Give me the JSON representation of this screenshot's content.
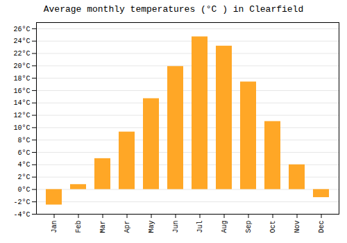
{
  "chart_data": {
    "type": "bar",
    "title": "Average monthly temperatures (°C ) in Clearfield",
    "categories": [
      "Jan",
      "Feb",
      "Mar",
      "Apr",
      "May",
      "Jun",
      "Jul",
      "Aug",
      "Sep",
      "Oct",
      "Nov",
      "Dec"
    ],
    "values": [
      -2.5,
      0.8,
      5.0,
      9.3,
      14.7,
      19.9,
      24.7,
      23.2,
      17.4,
      11.0,
      4.0,
      -1.3
    ],
    "color": "#FFA726",
    "ylim": [
      -4,
      27
    ],
    "yticks": [
      {
        "value": -4,
        "label": "-4°C"
      },
      {
        "value": -2,
        "label": "-2°C"
      },
      {
        "value": 0,
        "label": "0°C"
      },
      {
        "value": 2,
        "label": "2°C"
      },
      {
        "value": 4,
        "label": "4°C"
      },
      {
        "value": 6,
        "label": "6°C"
      },
      {
        "value": 8,
        "label": "8°C"
      },
      {
        "value": 10,
        "label": "10°C"
      },
      {
        "value": 12,
        "label": "12°C"
      },
      {
        "value": 14,
        "label": "14°C"
      },
      {
        "value": 16,
        "label": "16°C"
      },
      {
        "value": 18,
        "label": "18°C"
      },
      {
        "value": 20,
        "label": "20°C"
      },
      {
        "value": 22,
        "label": "22°C"
      },
      {
        "value": 24,
        "label": "24°C"
      },
      {
        "value": 26,
        "label": "26°C"
      }
    ],
    "grid": true
  }
}
